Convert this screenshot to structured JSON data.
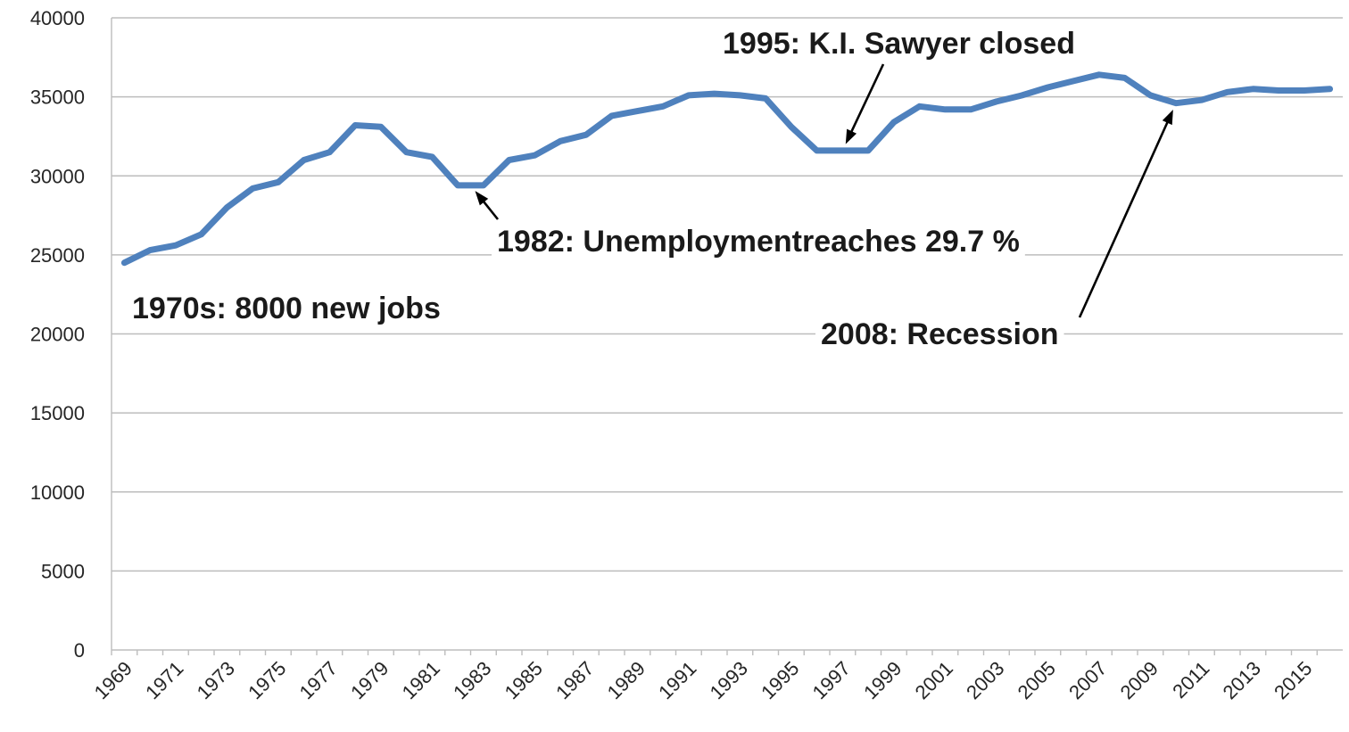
{
  "chart_data": {
    "type": "line",
    "title": "",
    "xlabel": "",
    "ylabel": "",
    "ylim": [
      0,
      40000
    ],
    "y_ticks": [
      0,
      5000,
      10000,
      15000,
      20000,
      25000,
      30000,
      35000,
      40000
    ],
    "y_tick_labels": [
      "0",
      "5000",
      "10000",
      "15000",
      "20000",
      "25000",
      "30000",
      "35000",
      "40000"
    ],
    "grid": true,
    "legend": "none",
    "x_tick_labels": [
      "1969",
      "1971",
      "1973",
      "1975",
      "1977",
      "1979",
      "1981",
      "1983",
      "1985",
      "1987",
      "1989",
      "1991",
      "1993",
      "1995",
      "1997",
      "1999",
      "2001",
      "2003",
      "2005",
      "2007",
      "2009",
      "2011",
      "2013",
      "2015"
    ],
    "x": [
      1969,
      1970,
      1971,
      1972,
      1973,
      1974,
      1975,
      1976,
      1977,
      1978,
      1979,
      1980,
      1981,
      1982,
      1983,
      1984,
      1985,
      1986,
      1987,
      1988,
      1989,
      1990,
      1991,
      1992,
      1993,
      1994,
      1995,
      1996,
      1997,
      1998,
      1999,
      2000,
      2001,
      2002,
      2003,
      2004,
      2005,
      2006,
      2007,
      2008,
      2009,
      2010,
      2011,
      2012,
      2013,
      2014,
      2015,
      2016
    ],
    "series": [
      {
        "color": "#4f81bd",
        "values": [
          24500,
          25300,
          25600,
          26300,
          28000,
          29200,
          29600,
          31000,
          31500,
          33200,
          33100,
          31500,
          31200,
          29400,
          29400,
          31000,
          31300,
          32200,
          32600,
          33800,
          34100,
          34400,
          35100,
          35200,
          35100,
          34900,
          33100,
          31600,
          31600,
          31600,
          33400,
          34400,
          34200,
          34200,
          34700,
          35100,
          35600,
          36000,
          36400,
          36200,
          35100,
          34600,
          34800,
          35300,
          35500,
          35400,
          35400,
          35500
        ]
      }
    ],
    "annotations": [
      {
        "text": "1970s: 8000 new jobs"
      },
      {
        "text": "1982: Unemploymentreaches 29.7 %",
        "arrow_to": {
          "x": 1982.5,
          "y": 29400
        }
      },
      {
        "text": "1995: K.I. Sawyer closed",
        "arrow_to": {
          "x": 1997,
          "y": 31600
        }
      },
      {
        "text": "2008: Recession",
        "arrow_to": {
          "x": 2010,
          "y": 34600
        }
      }
    ]
  }
}
